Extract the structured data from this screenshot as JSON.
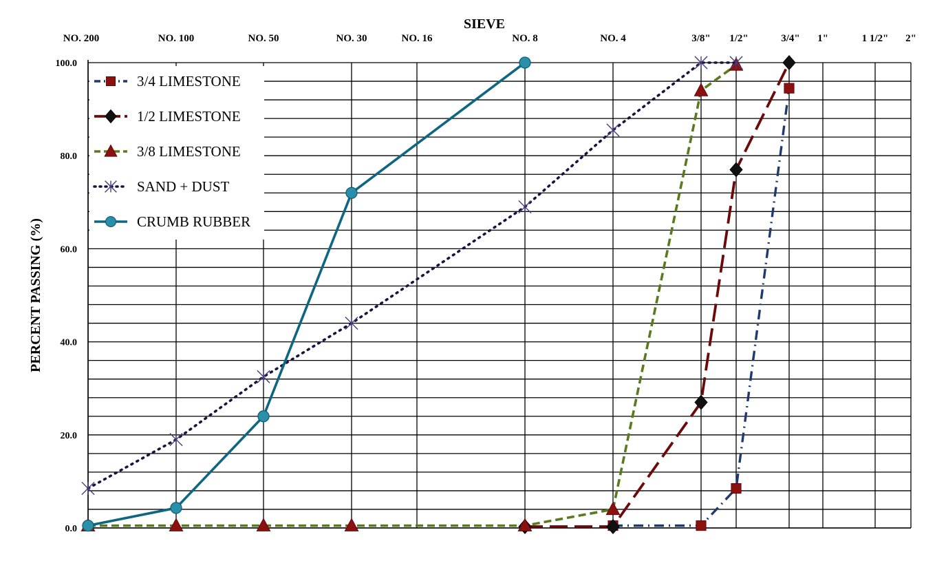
{
  "chart_data": {
    "type": "line",
    "title": "",
    "xlabel": "SIEVE",
    "ylabel": "PERCENT PASSING (%)",
    "ylim": [
      0,
      100
    ],
    "y_ticks": [
      "0.0",
      "20.0",
      "40.0",
      "60.0",
      "80.0",
      "100.0"
    ],
    "x_scale": "log (sieve opening)",
    "categories": [
      "NO. 200",
      "NO. 100",
      "NO. 50",
      "NO. 30",
      "NO. 16",
      "NO. 8",
      "NO. 4",
      "3/8\"",
      "1/2\"",
      "3/4\"",
      "1\"",
      "1 1/2\"",
      "2\""
    ],
    "grid": true,
    "legend_position": "top-left",
    "series": [
      {
        "name": "3/4 LIMESTONE",
        "color": "#1f3a6e",
        "marker": "square",
        "marker_color": "#8b1010",
        "line_style": "dash-dot",
        "values": [
          null,
          null,
          null,
          null,
          null,
          null,
          0.5,
          0.5,
          8.5,
          94.5,
          null,
          null,
          null
        ]
      },
      {
        "name": "1/2 LIMESTONE",
        "color": "#6b0a0a",
        "marker": "diamond",
        "marker_color": "#111111",
        "line_style": "long-dash",
        "values": [
          null,
          null,
          null,
          null,
          null,
          0.3,
          0.3,
          27,
          77,
          100,
          null,
          null,
          null
        ]
      },
      {
        "name": "3/8 LIMESTONE",
        "color": "#5a7a1e",
        "marker": "triangle",
        "marker_color": "#8b1010",
        "line_style": "dash",
        "values": [
          0.5,
          0.5,
          0.5,
          0.5,
          null,
          0.5,
          4,
          94,
          99.5,
          null,
          null,
          null,
          null
        ]
      },
      {
        "name": "SAND + DUST",
        "color": "#1a1240",
        "marker": "star",
        "marker_color": "#4a3a7a",
        "line_style": "dot",
        "values": [
          8.5,
          19,
          32.5,
          44,
          null,
          69,
          85.5,
          100,
          100,
          null,
          null,
          null,
          null
        ]
      },
      {
        "name": "CRUMB RUBBER",
        "color": "#0e6680",
        "marker": "circle",
        "marker_color": "#2a8fa8",
        "line_style": "solid",
        "values": [
          0.5,
          4.3,
          24,
          72,
          null,
          100,
          null,
          null,
          null,
          null,
          null,
          null,
          null
        ]
      }
    ]
  }
}
